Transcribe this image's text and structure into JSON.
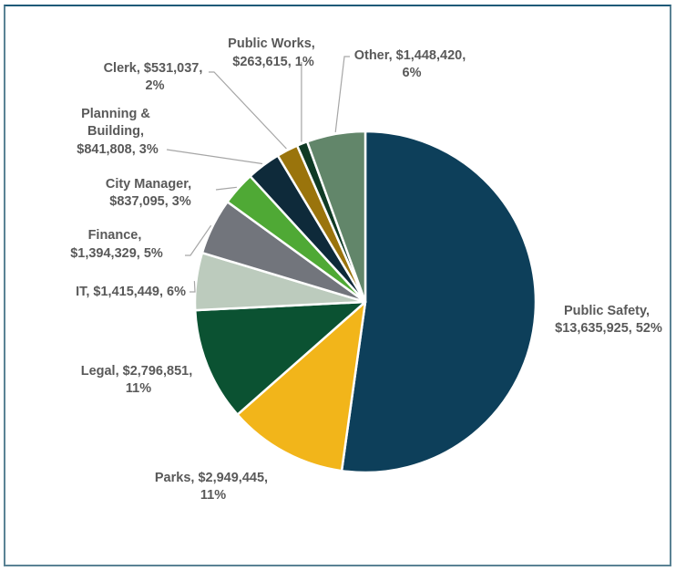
{
  "chart_data": {
    "type": "pie",
    "title": "",
    "start_angle_deg": 0,
    "direction": "clockwise",
    "slices": [
      {
        "name": "Public Safety",
        "value": 13635925,
        "percent": "52%",
        "color": "#0d3f5a",
        "label_lines": [
          "Public Safety,",
          "$13,635,925, 52%"
        ]
      },
      {
        "name": "Parks",
        "value": 2949445,
        "percent": "11%",
        "color": "#f2b51a",
        "label_lines": [
          "Parks, $2,949,445,",
          "11%"
        ]
      },
      {
        "name": "Legal",
        "value": 2796851,
        "percent": "11%",
        "color": "#0b5232",
        "label_lines": [
          "Legal, $2,796,851,",
          "11%"
        ]
      },
      {
        "name": "IT",
        "value": 1415449,
        "percent": "6%",
        "color": "#bccbbd",
        "label_lines": [
          "IT, $1,415,449, 6%"
        ]
      },
      {
        "name": "Finance",
        "value": 1394329,
        "percent": "5%",
        "color": "#72757c",
        "label_lines": [
          "Finance,",
          "$1,394,329, 5%"
        ]
      },
      {
        "name": "City Manager",
        "value": 837095,
        "percent": "3%",
        "color": "#4fa935",
        "label_lines": [
          "City Manager,",
          "$837,095, 3%"
        ]
      },
      {
        "name": "Planning & Building",
        "value": 841808,
        "percent": "3%",
        "color": "#0e2a3a",
        "label_lines": [
          "Planning &",
          "Building,",
          "$841,808, 3%"
        ]
      },
      {
        "name": "Clerk",
        "value": 531037,
        "percent": "2%",
        "color": "#9a740c",
        "label_lines": [
          "Clerk, $531,037,",
          "2%"
        ]
      },
      {
        "name": "Public Works",
        "value": 263615,
        "percent": "1%",
        "color": "#0f3a25",
        "label_lines": [
          "Public Works,",
          "$263,615, 1%"
        ]
      },
      {
        "name": "Other",
        "value": 1448420,
        "percent": "6%",
        "color": "#62866a",
        "label_lines": [
          "Other, $1,448,420,",
          "6%"
        ]
      }
    ],
    "legend": "none"
  }
}
